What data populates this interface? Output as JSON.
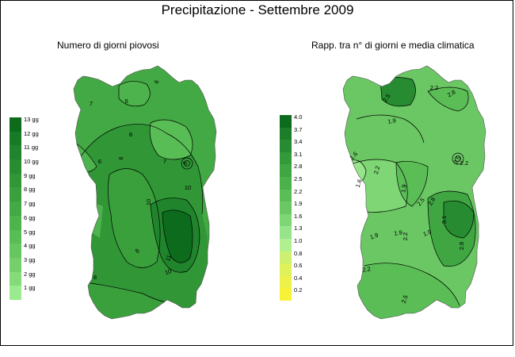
{
  "title": "Precipitazione - Settembre 2009",
  "left_panel": {
    "subtitle": "Numero di giorni piovosi",
    "legend": {
      "labels": [
        "13 gg",
        "12 gg",
        "11 gg",
        "10 gg",
        "9 gg",
        "8 gg",
        "7 gg",
        "6 gg",
        "5 gg",
        "4 gg",
        "3 gg",
        "2 gg",
        "1 gg"
      ],
      "colors": [
        "#0d6b1d",
        "#177a24",
        "#1f842b",
        "#278d30",
        "#309636",
        "#39a03c",
        "#43a944",
        "#4db34c",
        "#59bd55",
        "#66c660",
        "#75d06c",
        "#86da7a",
        "#9aeb90"
      ]
    },
    "contour_labels": [
      "6",
      "8",
      "7",
      "8",
      "6",
      "7",
      "5",
      "6",
      "10",
      "10",
      "11",
      "8",
      "10",
      "8"
    ]
  },
  "right_panel": {
    "subtitle": "Rapp. tra n° di giorni e media climatica",
    "legend": {
      "labels": [
        "4.0",
        "3.7",
        "3.4",
        "3.1",
        "2.8",
        "2.5",
        "2.2",
        "1.9",
        "1.6",
        "1.3",
        "1.0",
        "0.8",
        "0.6",
        "0.4",
        "0.2"
      ],
      "colors": [
        "#0d6b1d",
        "#1c7e28",
        "#278c31",
        "#339a39",
        "#3fa642",
        "#4bb14a",
        "#5abd56",
        "#6ac763",
        "#7fd675",
        "#96e58b",
        "#b2ef91",
        "#cdf070",
        "#e0f25a",
        "#eef14a",
        "#f7f238"
      ]
    },
    "contour_labels": [
      "2.5",
      "2.2",
      "2.8",
      "1.9",
      "1.6",
      "1.9",
      "2.2",
      "2.2",
      "2.8",
      "2.5",
      "3.1",
      "2.8",
      "2.2",
      "1.9",
      "1.9",
      "1.9",
      "2.2",
      "2.5",
      "2.5",
      "1.6"
    ]
  }
}
